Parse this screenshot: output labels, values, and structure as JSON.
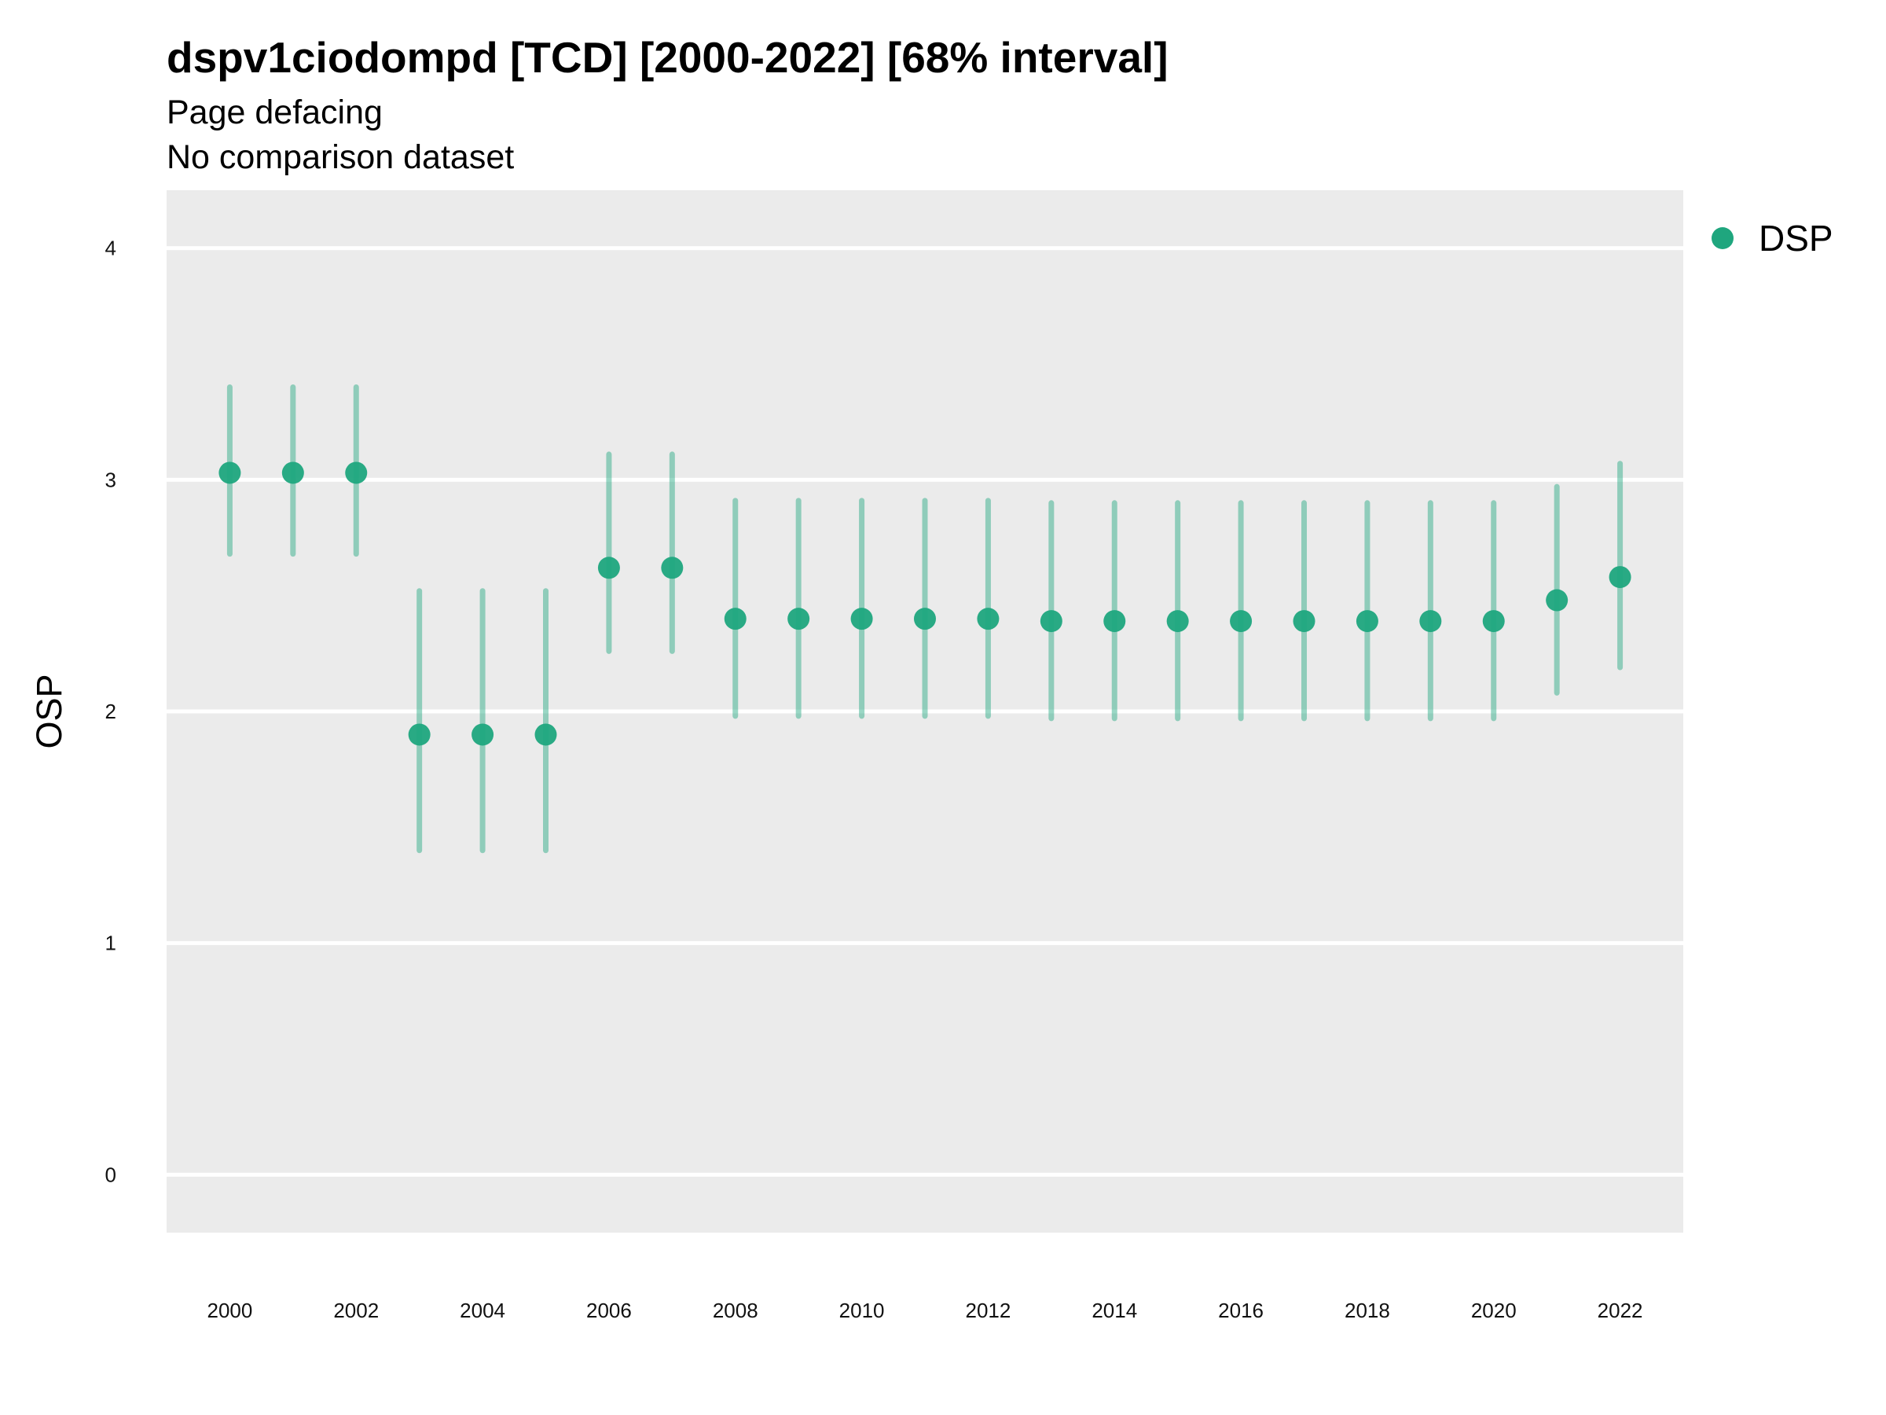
{
  "chart_data": {
    "type": "scatter",
    "title": "dspv1ciodompd [TCD] [2000-2022] [68% interval]",
    "subtitle": [
      "Page defacing",
      "No comparison dataset"
    ],
    "xlabel": "",
    "ylabel": "OSP",
    "ylim": [
      -0.25,
      4.25
    ],
    "y_ticks": [
      0,
      1,
      2,
      3,
      4
    ],
    "x_ticks": [
      2000,
      2002,
      2004,
      2006,
      2008,
      2010,
      2012,
      2014,
      2016,
      2018,
      2020,
      2022
    ],
    "xlim": [
      1999,
      2023
    ],
    "grid": true,
    "legend_position": "top-right",
    "series": [
      {
        "name": "DSP",
        "color": "#1FA67E",
        "x": [
          2000,
          2001,
          2002,
          2003,
          2004,
          2005,
          2006,
          2007,
          2008,
          2009,
          2010,
          2011,
          2012,
          2013,
          2014,
          2015,
          2016,
          2017,
          2018,
          2019,
          2020,
          2021,
          2022
        ],
        "y": [
          3.03,
          3.03,
          3.03,
          1.9,
          1.9,
          1.9,
          2.62,
          2.62,
          2.4,
          2.4,
          2.4,
          2.4,
          2.4,
          2.39,
          2.39,
          2.39,
          2.39,
          2.39,
          2.39,
          2.39,
          2.39,
          2.48,
          2.58
        ],
        "lower": [
          2.68,
          2.68,
          2.68,
          1.4,
          1.4,
          1.4,
          2.26,
          2.26,
          1.98,
          1.98,
          1.98,
          1.98,
          1.98,
          1.97,
          1.97,
          1.97,
          1.97,
          1.97,
          1.97,
          1.97,
          1.97,
          2.08,
          2.19
        ],
        "upper": [
          3.4,
          3.4,
          3.4,
          2.52,
          2.52,
          2.52,
          3.11,
          3.11,
          2.91,
          2.91,
          2.91,
          2.91,
          2.91,
          2.9,
          2.9,
          2.9,
          2.9,
          2.9,
          2.9,
          2.9,
          2.9,
          2.97,
          3.07
        ]
      }
    ]
  }
}
